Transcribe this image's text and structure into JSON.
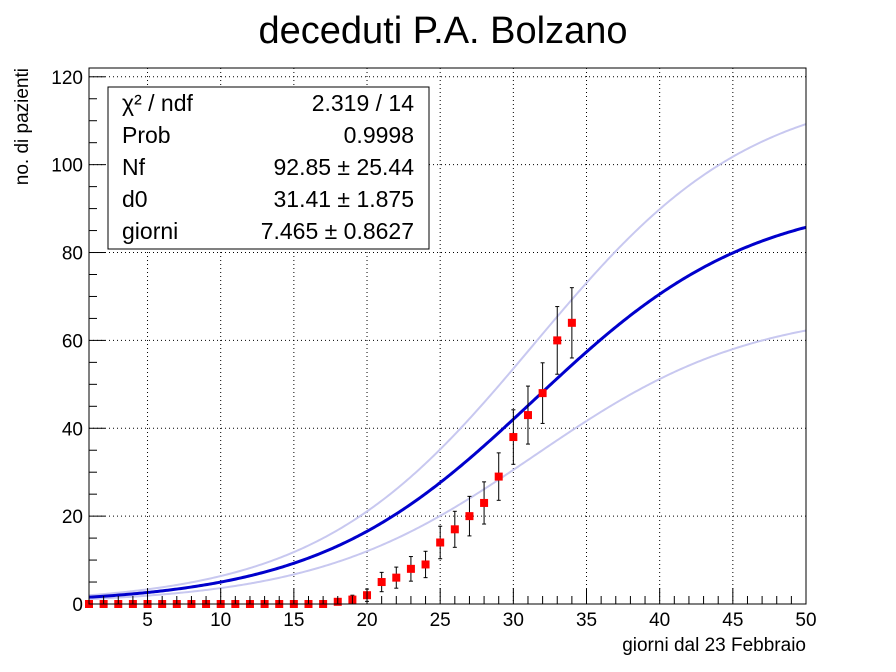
{
  "chart_data": {
    "type": "scatter",
    "title": "deceduti P.A. Bolzano",
    "xlabel": "giorni dal 23 Febbraio",
    "ylabel": "no. di pazienti",
    "xlim": [
      1,
      50
    ],
    "ylim": [
      0,
      122
    ],
    "grid": true,
    "x_ticks": [
      5,
      10,
      15,
      20,
      25,
      30,
      35,
      40,
      45,
      50
    ],
    "y_ticks": [
      0,
      20,
      40,
      60,
      80,
      100,
      120
    ],
    "colors": {
      "points": "#ff0000",
      "fit": "#0000cc",
      "band": "#c8c8f0",
      "grid": "#000000"
    },
    "series": [
      {
        "kind": "points",
        "x": [
          1,
          2,
          3,
          4,
          5,
          6,
          7,
          8,
          9,
          10,
          11,
          12,
          13,
          14,
          15,
          16,
          17,
          18,
          19,
          20,
          21,
          22,
          23,
          24,
          25,
          26,
          27,
          28,
          29,
          30,
          31,
          32,
          33,
          34
        ],
        "y": [
          0,
          0,
          0,
          0,
          0,
          0,
          0,
          0,
          0,
          0,
          0,
          0,
          0,
          0,
          0,
          0,
          0,
          0.5,
          1,
          2,
          5,
          6,
          8,
          9,
          14,
          17,
          20,
          23,
          29,
          38,
          43,
          48,
          60,
          64
        ],
        "err": [
          0.5,
          0.5,
          0.5,
          0.5,
          0.5,
          0.5,
          0.5,
          0.5,
          0.5,
          0.5,
          0.5,
          0.5,
          0.5,
          0.5,
          0.5,
          0.5,
          0.5,
          0.7,
          1,
          1.4,
          2.2,
          2.4,
          2.8,
          3,
          3.7,
          4.1,
          4.5,
          4.8,
          5.4,
          6.2,
          6.6,
          6.9,
          7.7,
          8
        ]
      },
      {
        "kind": "fit",
        "params": {
          "Nf": 92.85,
          "d0": 31.41,
          "giorni": 7.465
        }
      },
      {
        "kind": "band",
        "upper": {
          "Nf": 118.29,
          "d0": 31.41,
          "giorni": 7.465
        },
        "lower": {
          "Nf": 67.41,
          "d0": 31.41,
          "giorni": 7.465
        }
      }
    ],
    "stats": [
      {
        "name": "χ² / ndf",
        "value": "2.319 / 14"
      },
      {
        "name": "Prob",
        "value": "0.9998"
      },
      {
        "name": "Nf",
        "value": "92.85 ± 25.44"
      },
      {
        "name": "d0",
        "value": "31.41 ± 1.875"
      },
      {
        "name": "giorni",
        "value": "7.465 ± 0.8627"
      }
    ],
    "stats_placement": "top-left"
  }
}
